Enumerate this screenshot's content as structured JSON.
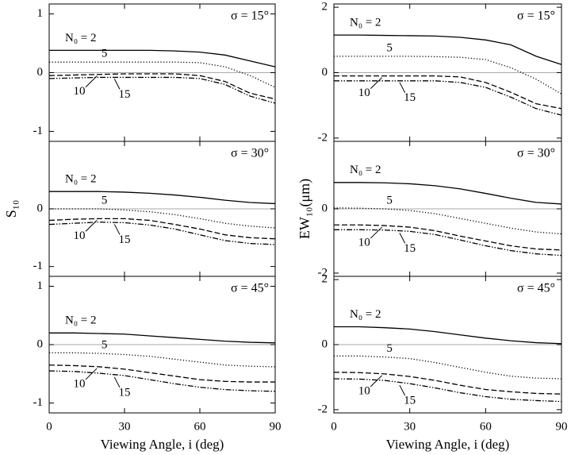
{
  "chart_data": [
    {
      "type": "line",
      "annotation": "σ = 15°",
      "x": [
        0,
        10,
        20,
        30,
        40,
        50,
        60,
        70,
        80,
        90
      ],
      "xlim": [
        0,
        90
      ],
      "xticks": [
        0,
        30,
        60,
        90
      ],
      "show_xtick_labels": false,
      "ylim": [
        -1.17,
        1.17
      ],
      "yticks": [
        -1,
        0,
        1
      ],
      "hline": 0,
      "hline_color": "#aaaaaa",
      "series": [
        {
          "name": "N₀ = 2",
          "color": "#000000",
          "dash": "solid",
          "values": [
            0.38,
            0.38,
            0.38,
            0.38,
            0.38,
            0.37,
            0.35,
            0.3,
            0.2,
            0.1
          ]
        },
        {
          "name": "5",
          "color": "#000000",
          "dash": "dotted",
          "values": [
            0.18,
            0.18,
            0.18,
            0.18,
            0.18,
            0.18,
            0.17,
            0.1,
            -0.05,
            -0.25
          ]
        },
        {
          "name": "10",
          "color": "#000000",
          "dash": "dashed",
          "values": [
            -0.05,
            -0.04,
            -0.03,
            -0.02,
            -0.02,
            -0.02,
            -0.05,
            -0.15,
            -0.35,
            -0.45
          ]
        },
        {
          "name": "15",
          "color": "#000000",
          "dash": "dashdotdot",
          "values": [
            -0.1,
            -0.09,
            -0.08,
            -0.08,
            -0.08,
            -0.08,
            -0.1,
            -0.2,
            -0.4,
            -0.52
          ]
        }
      ]
    },
    {
      "type": "line",
      "annotation": "σ = 30°",
      "ylabel": "S₁₀",
      "x": [
        0,
        10,
        20,
        30,
        40,
        50,
        60,
        70,
        80,
        90
      ],
      "xlim": [
        0,
        90
      ],
      "xticks": [
        0,
        30,
        60,
        90
      ],
      "show_xtick_labels": false,
      "ylim": [
        -1.17,
        1.17
      ],
      "yticks": [
        -1,
        0
      ],
      "hline": 0,
      "hline_color": "#aaaaaa",
      "series": [
        {
          "name": "N₀ = 2",
          "color": "#000000",
          "dash": "solid",
          "values": [
            0.3,
            0.3,
            0.3,
            0.29,
            0.27,
            0.24,
            0.2,
            0.15,
            0.11,
            0.09
          ]
        },
        {
          "name": "5",
          "color": "#000000",
          "dash": "dotted",
          "values": [
            0,
            0,
            0,
            -0.02,
            -0.05,
            -0.1,
            -0.17,
            -0.25,
            -0.3,
            -0.33
          ]
        },
        {
          "name": "10",
          "color": "#000000",
          "dash": "dashed",
          "values": [
            -0.2,
            -0.18,
            -0.17,
            -0.17,
            -0.2,
            -0.27,
            -0.35,
            -0.45,
            -0.5,
            -0.52
          ]
        },
        {
          "name": "15",
          "color": "#000000",
          "dash": "dashdotdot",
          "values": [
            -0.27,
            -0.25,
            -0.23,
            -0.24,
            -0.28,
            -0.35,
            -0.45,
            -0.55,
            -0.6,
            -0.62
          ]
        }
      ]
    },
    {
      "type": "line",
      "annotation": "σ = 45°",
      "xlabel": "Viewing Angle, i (deg)",
      "x": [
        0,
        10,
        20,
        30,
        40,
        50,
        60,
        70,
        80,
        90
      ],
      "xlim": [
        0,
        90
      ],
      "xticks": [
        0,
        30,
        60,
        90
      ],
      "show_xtick_labels": true,
      "ylim": [
        -1.17,
        1.17
      ],
      "yticks": [
        -1,
        0,
        1
      ],
      "hline": 0,
      "hline_color": "#aaaaaa",
      "series": [
        {
          "name": "N₀ = 2",
          "color": "#000000",
          "dash": "solid",
          "values": [
            0.2,
            0.2,
            0.19,
            0.18,
            0.15,
            0.12,
            0.09,
            0.06,
            0.04,
            0.03
          ]
        },
        {
          "name": "5",
          "color": "#000000",
          "dash": "dotted",
          "values": [
            -0.14,
            -0.14,
            -0.15,
            -0.17,
            -0.2,
            -0.25,
            -0.3,
            -0.35,
            -0.37,
            -0.38
          ]
        },
        {
          "name": "10",
          "color": "#000000",
          "dash": "dashed",
          "values": [
            -0.35,
            -0.36,
            -0.38,
            -0.42,
            -0.48,
            -0.54,
            -0.6,
            -0.63,
            -0.64,
            -0.64
          ]
        },
        {
          "name": "15",
          "color": "#000000",
          "dash": "dashdotdot",
          "values": [
            -0.45,
            -0.46,
            -0.49,
            -0.53,
            -0.6,
            -0.67,
            -0.73,
            -0.77,
            -0.79,
            -0.8
          ]
        }
      ]
    },
    {
      "type": "line",
      "annotation": "σ = 15°",
      "x": [
        0,
        10,
        20,
        30,
        40,
        50,
        60,
        70,
        80,
        90
      ],
      "xlim": [
        0,
        90
      ],
      "xticks": [
        0,
        30,
        60,
        90
      ],
      "show_xtick_labels": false,
      "ylim": [
        -2.1,
        2.1
      ],
      "yticks": [
        -2,
        0,
        2
      ],
      "hline": 0,
      "hline_color": "#aaaaaa",
      "series": [
        {
          "name": "N₀ = 2",
          "color": "#000000",
          "dash": "solid",
          "values": [
            1.15,
            1.15,
            1.14,
            1.13,
            1.12,
            1.08,
            1.0,
            0.85,
            0.5,
            0.25
          ]
        },
        {
          "name": "5",
          "color": "#000000",
          "dash": "dotted",
          "values": [
            0.5,
            0.5,
            0.5,
            0.5,
            0.49,
            0.47,
            0.4,
            0.15,
            -0.2,
            -0.65
          ]
        },
        {
          "name": "10",
          "color": "#000000",
          "dash": "dashed",
          "values": [
            -0.1,
            -0.1,
            -0.1,
            -0.1,
            -0.1,
            -0.13,
            -0.3,
            -0.6,
            -0.95,
            -1.1
          ]
        },
        {
          "name": "15",
          "color": "#000000",
          "dash": "dashdotdot",
          "values": [
            -0.25,
            -0.25,
            -0.25,
            -0.25,
            -0.25,
            -0.3,
            -0.45,
            -0.75,
            -1.1,
            -1.3
          ]
        }
      ]
    },
    {
      "type": "line",
      "annotation": "σ = 30°",
      "ylabel": "EW₁₀(μm)",
      "x": [
        0,
        10,
        20,
        30,
        40,
        50,
        60,
        70,
        80,
        90
      ],
      "xlim": [
        0,
        90
      ],
      "xticks": [
        0,
        30,
        60,
        90
      ],
      "show_xtick_labels": false,
      "ylim": [
        -2.1,
        2.1
      ],
      "yticks": [
        -2,
        0
      ],
      "hline": 0,
      "hline_color": "#aaaaaa",
      "series": [
        {
          "name": "N₀ = 2",
          "color": "#000000",
          "dash": "solid",
          "values": [
            0.82,
            0.82,
            0.81,
            0.78,
            0.72,
            0.62,
            0.48,
            0.33,
            0.2,
            0.15
          ]
        },
        {
          "name": "5",
          "color": "#000000",
          "dash": "dotted",
          "values": [
            0.03,
            0.02,
            0,
            -0.05,
            -0.15,
            -0.3,
            -0.45,
            -0.6,
            -0.72,
            -0.78
          ]
        },
        {
          "name": "10",
          "color": "#000000",
          "dash": "dashed",
          "values": [
            -0.5,
            -0.5,
            -0.52,
            -0.57,
            -0.68,
            -0.85,
            -1.0,
            -1.15,
            -1.25,
            -1.28
          ]
        },
        {
          "name": "15",
          "color": "#000000",
          "dash": "dashdotdot",
          "values": [
            -0.65,
            -0.65,
            -0.66,
            -0.7,
            -0.8,
            -0.97,
            -1.15,
            -1.3,
            -1.4,
            -1.45
          ]
        }
      ]
    },
    {
      "type": "line",
      "annotation": "σ = 45°",
      "xlabel": "Viewing Angle, i (deg)",
      "x": [
        0,
        10,
        20,
        30,
        40,
        50,
        60,
        70,
        80,
        90
      ],
      "xlim": [
        0,
        90
      ],
      "xticks": [
        0,
        30,
        60,
        90
      ],
      "show_xtick_labels": true,
      "ylim": [
        -2.1,
        2.1
      ],
      "yticks": [
        -2,
        0,
        2
      ],
      "hline": 0,
      "hline_color": "#aaaaaa",
      "series": [
        {
          "name": "N₀ = 2",
          "color": "#000000",
          "dash": "solid",
          "values": [
            0.55,
            0.55,
            0.52,
            0.48,
            0.4,
            0.3,
            0.2,
            0.12,
            0.06,
            0.03
          ]
        },
        {
          "name": "5",
          "color": "#000000",
          "dash": "dotted",
          "values": [
            -0.35,
            -0.35,
            -0.38,
            -0.43,
            -0.55,
            -0.7,
            -0.85,
            -0.97,
            -1.03,
            -1.05
          ]
        },
        {
          "name": "10",
          "color": "#000000",
          "dash": "dashed",
          "values": [
            -0.85,
            -0.86,
            -0.9,
            -0.98,
            -1.1,
            -1.25,
            -1.38,
            -1.45,
            -1.5,
            -1.52
          ]
        },
        {
          "name": "15",
          "color": "#000000",
          "dash": "dashdotdot",
          "values": [
            -1.05,
            -1.06,
            -1.1,
            -1.2,
            -1.33,
            -1.48,
            -1.6,
            -1.68,
            -1.72,
            -1.75
          ]
        }
      ]
    }
  ]
}
